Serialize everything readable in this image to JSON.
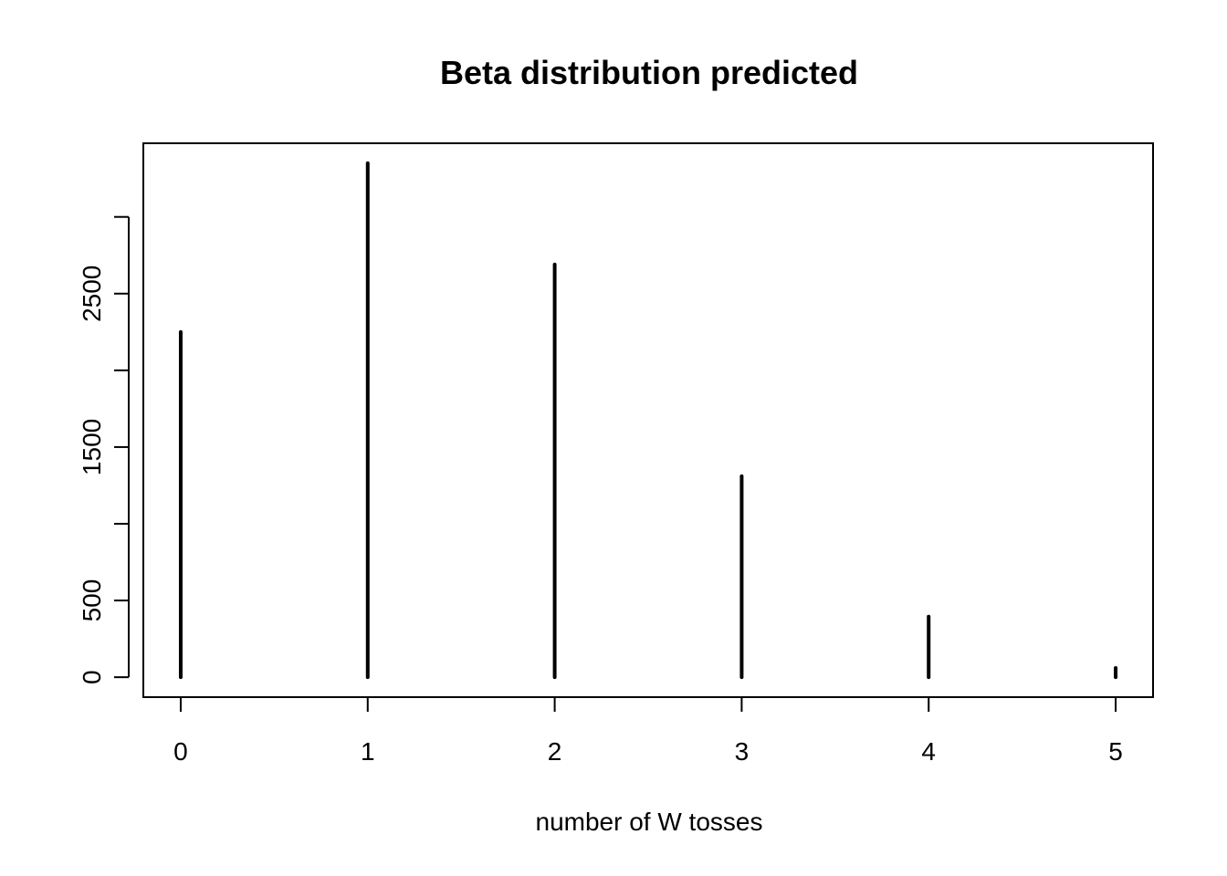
{
  "chart_data": {
    "type": "bar",
    "title": "Beta distribution predicted",
    "xlabel": "number of W tosses",
    "ylabel": "",
    "categories": [
      "0",
      "1",
      "2",
      "3",
      "4",
      "5"
    ],
    "x": [
      0,
      1,
      2,
      3,
      4,
      5
    ],
    "values": [
      2250,
      3350,
      2690,
      1310,
      395,
      60
    ],
    "xlim": [
      -0.2,
      5.2
    ],
    "ylim": [
      -130,
      3480
    ],
    "yticks": [
      0,
      500,
      1000,
      1500,
      2000,
      2500,
      3000
    ],
    "ytick_labels": [
      "0",
      "500",
      "",
      "1500",
      "",
      "2500",
      ""
    ],
    "grid": false,
    "legend": "none",
    "colors": {
      "bars": "#000000",
      "axes": "#000000",
      "background": "#ffffff"
    }
  }
}
